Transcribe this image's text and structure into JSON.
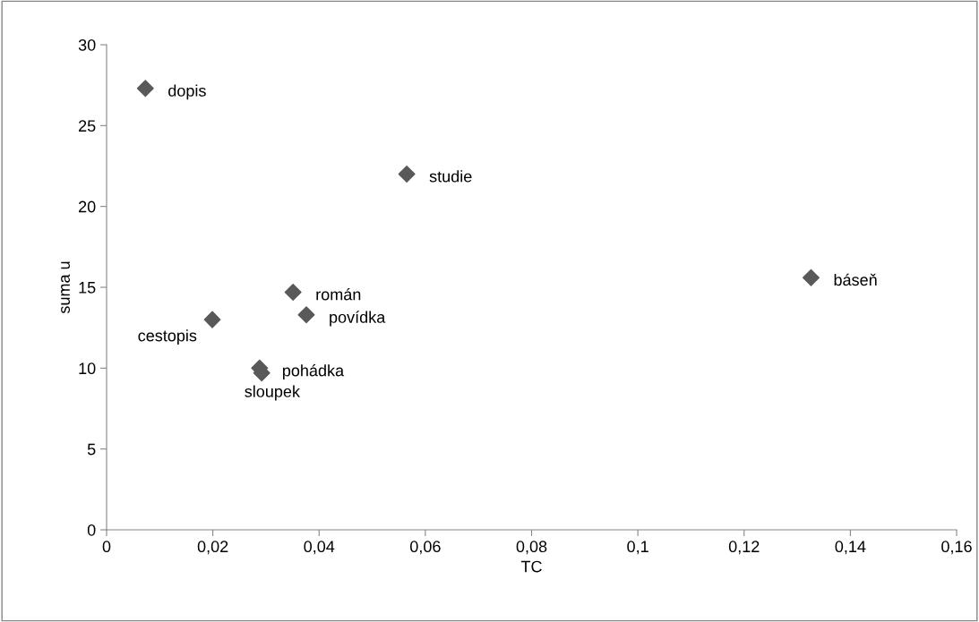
{
  "chart_data": {
    "type": "scatter",
    "xlabel": "TC",
    "ylabel": "suma u",
    "x": [
      0.0073,
      0.0565,
      0.1326,
      0.0351,
      0.0376,
      0.0199,
      0.0288,
      0.0292
    ],
    "series": [
      {
        "color": "#595959",
        "values": [
          27.3,
          22.0,
          15.6,
          14.7,
          13.3,
          13.0,
          10.0,
          9.7
        ]
      }
    ],
    "marker": "diamond",
    "grid": false,
    "legend": false,
    "xlim": [
      0,
      0.16
    ],
    "ylim": [
      0,
      30
    ],
    "xticks": [
      0,
      {
        "value": 0.02,
        "label": "0,02"
      },
      {
        "value": 0.04,
        "label": "0,04"
      },
      {
        "value": 0.06,
        "label": "0,06"
      },
      {
        "value": 0.08,
        "label": "0,08"
      },
      {
        "value": 0.1,
        "label": "0,1"
      },
      {
        "value": 0.12,
        "label": "0,12"
      },
      {
        "value": 0.14,
        "label": "0,14"
      },
      {
        "value": 0.16,
        "label": "0,16"
      }
    ],
    "yticks": [
      0,
      5,
      10,
      15,
      20,
      25,
      30
    ],
    "annotations": [
      {
        "text": "dopis",
        "x": 0.0073,
        "y": 27.3
      },
      {
        "text": "studie",
        "x": 0.0565,
        "y": 22.0
      },
      {
        "text": "báseň",
        "x": 0.1326,
        "y": 15.6
      },
      {
        "text": "román",
        "x": 0.0351,
        "y": 14.7
      },
      {
        "text": "povídka",
        "x": 0.0376,
        "y": 13.3
      },
      {
        "text": "cestopis",
        "x": 0.0199,
        "y": 13.0
      },
      {
        "text": "pohádka",
        "x": 0.0288,
        "y": 10.0
      },
      {
        "text": "sloupek",
        "x": 0.0292,
        "y": 9.7
      }
    ]
  }
}
